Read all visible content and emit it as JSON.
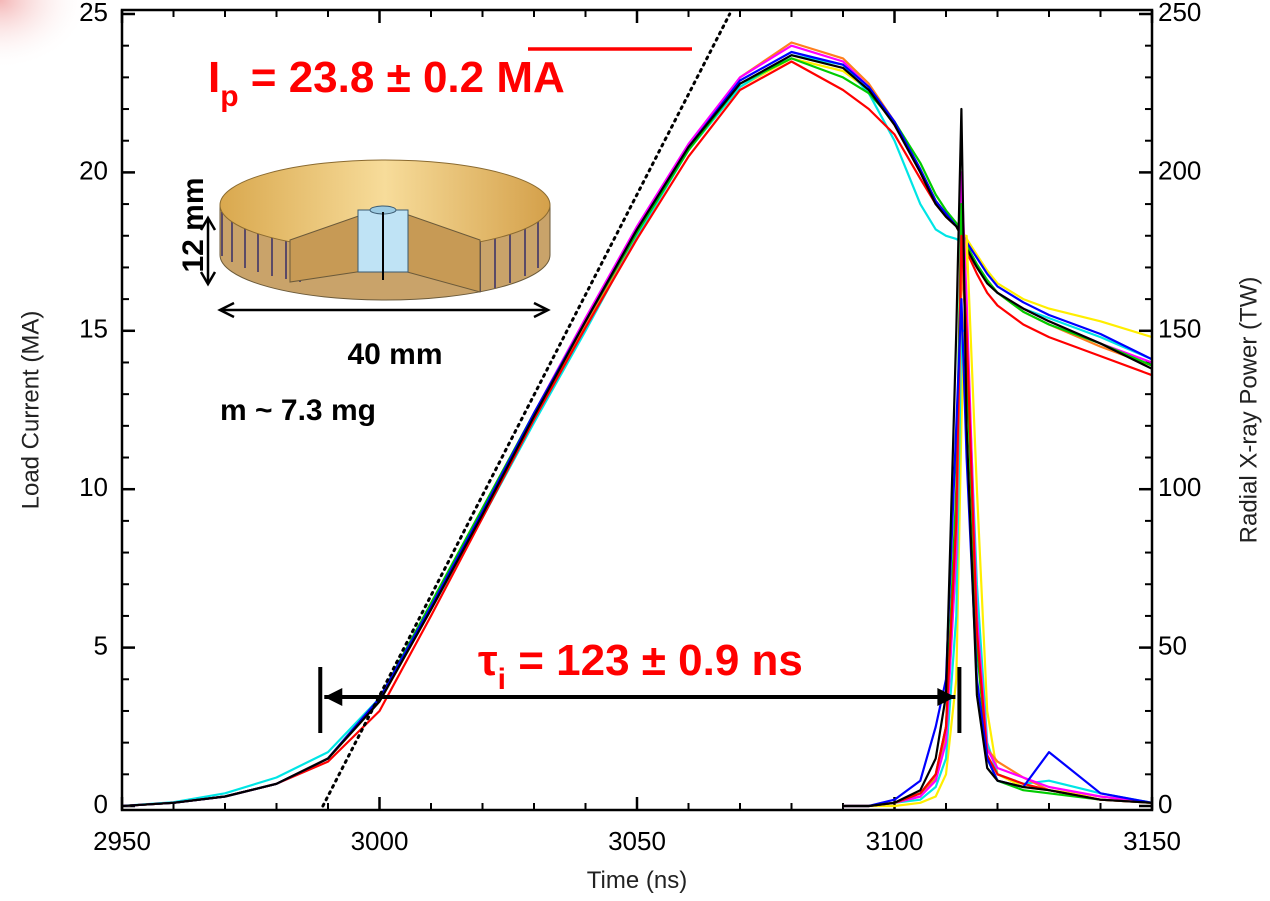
{
  "chart_data": {
    "type": "line",
    "x_label": "Time (ns)",
    "y_label": "Load Current (MA)",
    "y2_label": "Radial X-ray Power (TW)",
    "xlim": [
      2950,
      3150
    ],
    "xticks": [
      2950,
      3000,
      3050,
      3100,
      3150
    ],
    "ylim": [
      0,
      25
    ],
    "yticks": [
      0,
      5,
      10,
      15,
      20,
      25
    ],
    "y2lim": [
      0,
      250
    ],
    "y2ticks": [
      0,
      50,
      100,
      150,
      200,
      250
    ],
    "x": [
      2950,
      2960,
      2970,
      2980,
      2990,
      3000,
      3010,
      3020,
      3030,
      3040,
      3050,
      3060,
      3070,
      3080,
      3090,
      3095,
      3100,
      3105,
      3108,
      3110,
      3112,
      3113,
      3114,
      3116,
      3118,
      3120,
      3125,
      3130,
      3140,
      3150
    ],
    "series": [
      {
        "color": "#ffee00",
        "axis": "y",
        "values": [
          0,
          0.1,
          0.3,
          0.7,
          1.5,
          3.3,
          6.2,
          9.2,
          12.3,
          15.2,
          18.1,
          20.7,
          22.7,
          23.6,
          23.2,
          22.6,
          21.5,
          20.1,
          19.1,
          18.7,
          18.4,
          18.2,
          17.9,
          17.4,
          16.9,
          16.5,
          16.0,
          15.7,
          15.3,
          14.8
        ]
      },
      {
        "color": "#00e5e5",
        "axis": "y",
        "values": [
          0,
          0.12,
          0.4,
          0.9,
          1.7,
          3.4,
          6.2,
          9.1,
          12.1,
          15.0,
          18.0,
          20.7,
          22.7,
          23.7,
          23.4,
          22.5,
          21.0,
          19.0,
          18.2,
          18.0,
          17.9,
          17.8,
          17.5,
          17.0,
          16.5,
          16.2,
          15.7,
          15.4,
          14.8,
          14.1
        ]
      },
      {
        "color": "#ff7f1e",
        "axis": "y",
        "values": [
          0,
          0.1,
          0.3,
          0.7,
          1.5,
          3.3,
          6.2,
          9.2,
          12.3,
          15.2,
          18.1,
          20.8,
          23.0,
          24.1,
          23.6,
          22.8,
          21.6,
          20.1,
          19.1,
          18.7,
          18.3,
          18.0,
          17.6,
          17.0,
          16.5,
          16.2,
          15.6,
          15.2,
          14.5,
          13.9
        ]
      },
      {
        "color": "#ff00ff",
        "axis": "y",
        "values": [
          0,
          0.1,
          0.3,
          0.7,
          1.5,
          3.4,
          6.3,
          9.3,
          12.4,
          15.4,
          18.3,
          20.9,
          23.0,
          24.0,
          23.5,
          22.7,
          21.5,
          20.0,
          19.0,
          18.7,
          18.4,
          18.1,
          17.7,
          17.1,
          16.6,
          16.2,
          15.7,
          15.3,
          14.6,
          14.0
        ]
      },
      {
        "color": "#00cc00",
        "axis": "y",
        "values": [
          0,
          0.1,
          0.3,
          0.7,
          1.5,
          3.4,
          6.4,
          9.4,
          12.4,
          15.3,
          18.1,
          20.7,
          22.8,
          23.6,
          23.0,
          22.5,
          21.6,
          20.3,
          19.3,
          18.8,
          18.4,
          18.1,
          17.7,
          17.1,
          16.6,
          16.2,
          15.6,
          15.2,
          14.6,
          13.9
        ]
      },
      {
        "color": "#ff0000",
        "axis": "y",
        "values": [
          0,
          0.1,
          0.3,
          0.7,
          1.4,
          3.0,
          6.0,
          9.1,
          12.2,
          15.1,
          17.9,
          20.5,
          22.6,
          23.5,
          22.6,
          22.0,
          21.2,
          19.8,
          19.0,
          18.6,
          18.3,
          18.0,
          17.5,
          16.8,
          16.2,
          15.8,
          15.2,
          14.8,
          14.2,
          13.6
        ]
      },
      {
        "color": "#0000ff",
        "axis": "y",
        "values": [
          0,
          0.1,
          0.3,
          0.7,
          1.5,
          3.4,
          6.3,
          9.3,
          12.4,
          15.3,
          18.2,
          20.8,
          22.9,
          23.8,
          23.4,
          22.7,
          21.6,
          20.1,
          19.1,
          18.7,
          18.3,
          18.1,
          17.8,
          17.3,
          16.8,
          16.4,
          15.9,
          15.5,
          14.9,
          14.1
        ]
      },
      {
        "color": "#000000",
        "axis": "y",
        "values": [
          0,
          0.1,
          0.3,
          0.7,
          1.5,
          3.3,
          6.2,
          9.2,
          12.3,
          15.3,
          18.2,
          20.8,
          22.8,
          23.7,
          23.3,
          22.6,
          21.5,
          20.0,
          19.0,
          18.6,
          18.3,
          18.0,
          17.6,
          17.0,
          16.5,
          16.2,
          15.7,
          15.3,
          14.6,
          13.8
        ]
      },
      {
        "color": "#ffee00",
        "axis": "y2",
        "values": [
          null,
          null,
          null,
          null,
          null,
          null,
          null,
          null,
          null,
          null,
          null,
          null,
          null,
          null,
          0,
          0,
          0,
          1,
          3,
          10,
          40,
          120,
          180,
          100,
          30,
          10,
          6,
          5,
          3,
          1
        ]
      },
      {
        "color": "#00e5e5",
        "axis": "y2",
        "values": [
          null,
          null,
          null,
          null,
          null,
          null,
          null,
          null,
          null,
          null,
          null,
          null,
          null,
          null,
          0,
          0,
          1,
          2,
          6,
          15,
          60,
          150,
          150,
          70,
          20,
          10,
          7,
          8,
          4,
          1
        ]
      },
      {
        "color": "#ff7f1e",
        "axis": "y2",
        "values": [
          null,
          null,
          null,
          null,
          null,
          null,
          null,
          null,
          null,
          null,
          null,
          null,
          null,
          null,
          0,
          0,
          1,
          3,
          9,
          22,
          80,
          170,
          150,
          55,
          18,
          14,
          9,
          5,
          2,
          1
        ]
      },
      {
        "color": "#ff00ff",
        "axis": "y2",
        "values": [
          null,
          null,
          null,
          null,
          null,
          null,
          null,
          null,
          null,
          null,
          null,
          null,
          null,
          null,
          0,
          0,
          1,
          3,
          8,
          20,
          80,
          200,
          160,
          60,
          18,
          12,
          9,
          6,
          3,
          1
        ]
      },
      {
        "color": "#00cc00",
        "axis": "y2",
        "values": [
          null,
          null,
          null,
          null,
          null,
          null,
          null,
          null,
          null,
          null,
          null,
          null,
          null,
          null,
          0,
          0,
          1,
          4,
          10,
          25,
          100,
          190,
          140,
          50,
          15,
          8,
          5,
          4,
          2,
          1
        ]
      },
      {
        "color": "#ff0000",
        "axis": "y2",
        "values": [
          null,
          null,
          null,
          null,
          null,
          null,
          null,
          null,
          null,
          null,
          null,
          null,
          null,
          null,
          0,
          0,
          1,
          4,
          10,
          25,
          90,
          180,
          150,
          55,
          16,
          10,
          7,
          5,
          2,
          1
        ]
      },
      {
        "color": "#0000ff",
        "axis": "y2",
        "values": [
          null,
          null,
          null,
          null,
          null,
          null,
          null,
          null,
          null,
          null,
          null,
          null,
          null,
          null,
          0,
          0,
          2,
          8,
          25,
          40,
          120,
          160,
          110,
          40,
          15,
          8,
          6,
          17,
          4,
          1
        ]
      },
      {
        "color": "#000000",
        "axis": "y2",
        "values": [
          null,
          null,
          null,
          null,
          null,
          null,
          null,
          null,
          null,
          null,
          null,
          null,
          null,
          null,
          0,
          0,
          1,
          5,
          15,
          35,
          150,
          220,
          120,
          35,
          12,
          8,
          6,
          5,
          2,
          1
        ]
      }
    ],
    "fit_line": {
      "x": [
        2989,
        3068
      ],
      "values": [
        0,
        25
      ]
    },
    "current_label": {
      "symbol": "I",
      "subscript": "p",
      "text": " = 23.8 ± 0.2 MA"
    },
    "implosion_label": {
      "symbol": "τ",
      "subscript": "i",
      "text": " = 123 ± 0.9 ns",
      "interval": [
        2988.5,
        3112.6
      ]
    },
    "inset": {
      "height_label": "12 mm",
      "diameter_label": "40 mm",
      "mass_label": "m ~ 7.3 mg"
    }
  }
}
